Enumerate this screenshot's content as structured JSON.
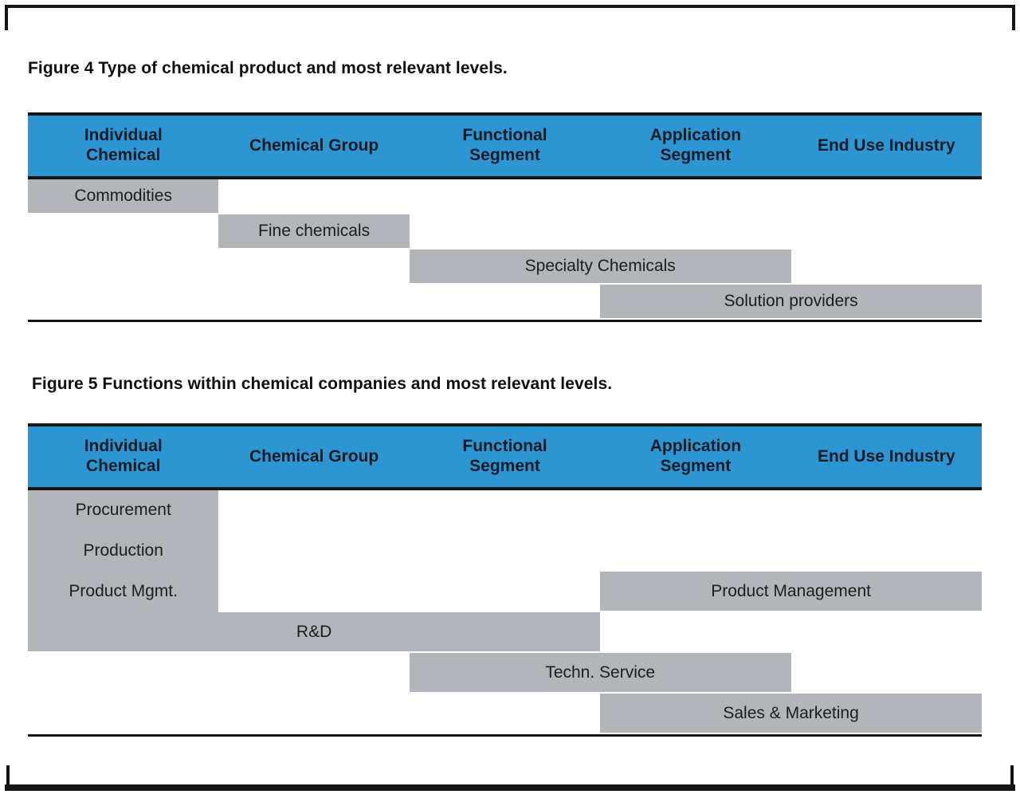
{
  "colors": {
    "header_blue": "#2d96d2",
    "bar_gray": "#b2b5b9"
  },
  "figure4": {
    "caption": "Figure 4 Type of chemical product and most relevant levels.",
    "columns": [
      "Individual\nChemical",
      "Chemical Group",
      "Functional\nSegment",
      "Application\nSegment",
      "End Use Industry"
    ],
    "bars": [
      {
        "label": "Commodities",
        "col": 1,
        "span": 1,
        "row": 0
      },
      {
        "label": "Fine chemicals",
        "col": 2,
        "span": 1,
        "row": 1
      },
      {
        "label": "Specialty Chemicals",
        "col": 3,
        "span": 2,
        "row": 2
      },
      {
        "label": "Solution providers",
        "col": 4,
        "span": 2,
        "row": 3
      }
    ]
  },
  "figure5": {
    "caption": "Figure 5 Functions within chemical companies and most relevant levels.",
    "columns": [
      "Individual\nChemical",
      "Chemical Group",
      "Functional\nSegment",
      "Application\nSegment",
      "End Use Industry"
    ],
    "left_block": {
      "items": [
        "Procurement",
        "Production",
        "Product Mgmt."
      ],
      "row_span": 4
    },
    "bars": [
      {
        "label": "Product Management",
        "col": 4,
        "span": 2,
        "row": 2
      },
      {
        "label": "R&D",
        "col": 1,
        "span": 3,
        "row": 3
      },
      {
        "label": "Techn. Service",
        "col": 3,
        "span": 2,
        "row": 4
      },
      {
        "label": "Sales & Marketing",
        "col": 4,
        "span": 2,
        "row": 5
      }
    ]
  }
}
